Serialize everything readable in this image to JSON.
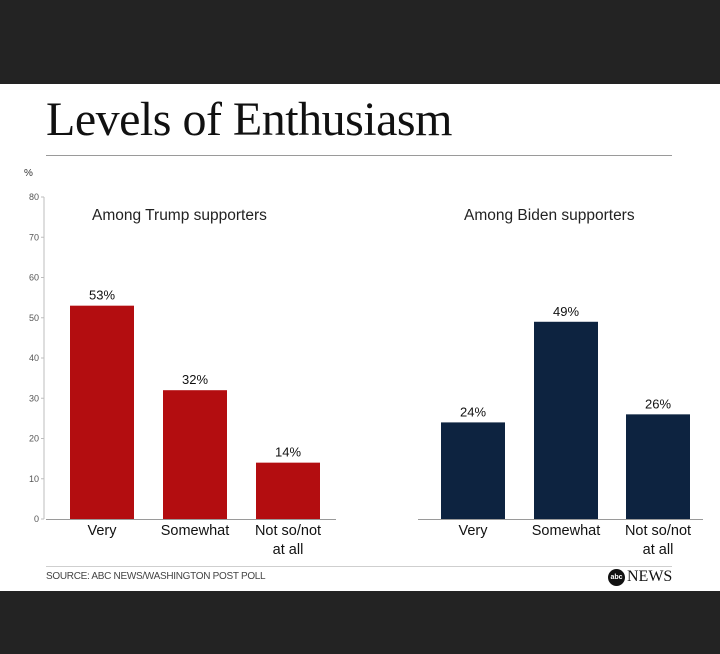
{
  "title": "Levels of Enthusiasm",
  "source": "SOURCE: ABC NEWS/WASHINGTON POST POLL",
  "brand": {
    "icon_text": "abc",
    "name": "NEWS"
  },
  "colors": {
    "trump": "#b30d10",
    "biden": "#0d2340",
    "background": "#ffffff",
    "frame": "#232323"
  },
  "chart_data": {
    "type": "bar",
    "unit_label": "%",
    "ylim": [
      0,
      80
    ],
    "yticks": [
      0,
      10,
      20,
      30,
      40,
      50,
      60,
      70,
      80
    ],
    "categories": [
      "Very",
      "Somewhat",
      "Not so/not at all"
    ],
    "category_lines": [
      [
        "Very"
      ],
      [
        "Somewhat"
      ],
      [
        "Not so/not",
        "at all"
      ]
    ],
    "series": [
      {
        "name": "Among Trump supporters",
        "values": [
          53,
          32,
          14
        ],
        "labels": [
          "53%",
          "32%",
          "14%"
        ],
        "color": "#b30d10"
      },
      {
        "name": "Among Biden supporters",
        "values": [
          24,
          49,
          26
        ],
        "labels": [
          "24%",
          "49%",
          "26%"
        ],
        "color": "#0d2340"
      }
    ]
  }
}
